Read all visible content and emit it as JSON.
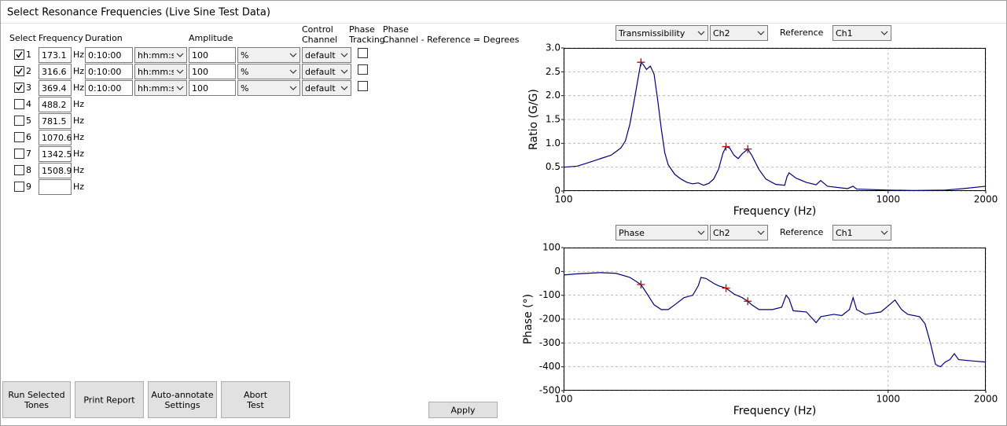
{
  "window": {
    "title": "Select Resonance Frequencies (Live Sine Test Data)"
  },
  "table": {
    "headers": {
      "select": [
        "Select"
      ],
      "frequency": [
        "Frequency"
      ],
      "duration": [
        "Duration"
      ],
      "amplitude": [
        "Amplitude"
      ],
      "control_channel": [
        "Control",
        "Channel"
      ],
      "phase_tracking": [
        "Phase",
        "Tracking"
      ],
      "phase": [
        "Phase",
        "Channel - Reference = Degrees"
      ]
    },
    "frequency_unit": "Hz",
    "rows": [
      {
        "index": "1",
        "selected": true,
        "frequency": "173.1",
        "duration": "0:10:00",
        "duration_unit": "hh:mm:ss",
        "amplitude": "100",
        "amplitude_unit": "%",
        "control_channel": "default",
        "phase_tracking": false
      },
      {
        "index": "2",
        "selected": true,
        "frequency": "316.6",
        "duration": "0:10:00",
        "duration_unit": "hh:mm:ss",
        "amplitude": "100",
        "amplitude_unit": "%",
        "control_channel": "default",
        "phase_tracking": false
      },
      {
        "index": "3",
        "selected": true,
        "frequency": "369.4",
        "duration": "0:10:00",
        "duration_unit": "hh:mm:ss",
        "amplitude": "100",
        "amplitude_unit": "%",
        "control_channel": "default",
        "phase_tracking": false
      },
      {
        "index": "4",
        "selected": false,
        "frequency": "488.2"
      },
      {
        "index": "5",
        "selected": false,
        "frequency": "781.5"
      },
      {
        "index": "6",
        "selected": false,
        "frequency": "1070.6"
      },
      {
        "index": "7",
        "selected": false,
        "frequency": "1342.5"
      },
      {
        "index": "8",
        "selected": false,
        "frequency": "1508.9"
      },
      {
        "index": "9",
        "selected": false
      }
    ]
  },
  "buttons": [
    {
      "label": [
        "Run Selected",
        "Tones"
      ]
    },
    {
      "label": [
        "Print Report"
      ]
    },
    {
      "label": [
        "Auto-annotate",
        "Settings"
      ]
    },
    {
      "label": [
        "Abort",
        "Test"
      ]
    },
    {
      "label": [
        "Apply"
      ]
    }
  ],
  "chart_data": [
    {
      "type": "line",
      "log_x": true,
      "grid": true,
      "color": "#000080",
      "controls": {
        "measurement": "Transmissibility",
        "channel": "Ch2",
        "reference_label": "Reference",
        "reference": "Ch1"
      },
      "xlabel": "Frequency (Hz)",
      "ylabel": "Ratio (G/G)",
      "xlim": [
        100,
        2000
      ],
      "xticks": [
        100,
        1000,
        2000
      ],
      "ylim": [
        0,
        3
      ],
      "yticks": [
        0,
        0.5,
        {
          "value": 1,
          "label": "1.0"
        },
        1.5,
        {
          "value": 2,
          "label": "2.0"
        },
        2.5,
        {
          "value": 3,
          "label": "3.0"
        }
      ],
      "x": [
        100,
        110,
        120,
        130,
        140,
        150,
        155,
        160,
        165,
        170,
        173.1,
        176,
        180,
        185,
        190,
        195,
        200,
        205,
        210,
        220,
        230,
        240,
        250,
        260,
        270,
        280,
        290,
        300,
        310,
        316.6,
        325,
        335,
        345,
        355,
        369.4,
        380,
        400,
        420,
        450,
        480,
        488,
        495,
        520,
        560,
        600,
        620,
        650,
        750,
        780,
        800,
        1000,
        1200,
        1500,
        1700,
        2000
      ],
      "values": [
        0.5,
        0.52,
        0.6,
        0.68,
        0.75,
        0.9,
        1.05,
        1.4,
        1.9,
        2.4,
        2.7,
        2.65,
        2.55,
        2.62,
        2.45,
        1.9,
        1.3,
        0.8,
        0.55,
        0.35,
        0.25,
        0.18,
        0.15,
        0.17,
        0.12,
        0.16,
        0.25,
        0.45,
        0.8,
        0.93,
        0.9,
        0.75,
        0.68,
        0.78,
        0.88,
        0.75,
        0.45,
        0.25,
        0.14,
        0.12,
        0.3,
        0.38,
        0.27,
        0.18,
        0.13,
        0.22,
        0.1,
        0.05,
        0.1,
        0.04,
        0.02,
        0.01,
        0.02,
        0.05,
        0.1
      ],
      "markers": {
        "color": "#c00000",
        "x": [
          173.1,
          316.6,
          369.4
        ],
        "values": [
          2.7,
          0.93,
          0.88
        ]
      }
    },
    {
      "type": "line",
      "log_x": true,
      "grid": true,
      "color": "#000080",
      "controls": {
        "measurement": "Phase",
        "channel": "Ch2",
        "reference_label": "Reference",
        "reference": "Ch1"
      },
      "xlabel": "Frequency (Hz)",
      "ylabel": "Phase (°)",
      "xlim": [
        100,
        2000
      ],
      "xticks": [
        100,
        1000,
        2000
      ],
      "ylim": [
        -500,
        100
      ],
      "yticks": [
        100,
        0,
        -100,
        -200,
        -300,
        -400,
        -500
      ],
      "x": [
        100,
        110,
        130,
        145,
        160,
        173.1,
        180,
        190,
        200,
        210,
        220,
        235,
        250,
        260,
        265,
        275,
        290,
        300,
        316.6,
        335,
        355,
        369.4,
        380,
        400,
        440,
        470,
        485,
        495,
        510,
        560,
        600,
        620,
        680,
        720,
        760,
        780,
        800,
        850,
        950,
        1000,
        1050,
        1100,
        1150,
        1250,
        1300,
        1350,
        1400,
        1450,
        1500,
        1550,
        1600,
        1650,
        1800,
        2000
      ],
      "values": [
        -15,
        -10,
        -5,
        -8,
        -25,
        -55,
        -90,
        -140,
        -160,
        -160,
        -140,
        -110,
        -100,
        -60,
        -25,
        -30,
        -50,
        -60,
        -70,
        -95,
        -110,
        -125,
        -140,
        -160,
        -160,
        -150,
        -100,
        -115,
        -165,
        -170,
        -215,
        -190,
        -180,
        -185,
        -160,
        -110,
        -160,
        -180,
        -170,
        -145,
        -120,
        -160,
        -180,
        -190,
        -220,
        -300,
        -390,
        -400,
        -380,
        -370,
        -345,
        -370,
        -375,
        -380
      ],
      "markers": {
        "color": "#c00000",
        "x": [
          173.1,
          316.6,
          369.4
        ],
        "values": [
          -55,
          -70,
          -125
        ]
      }
    }
  ]
}
